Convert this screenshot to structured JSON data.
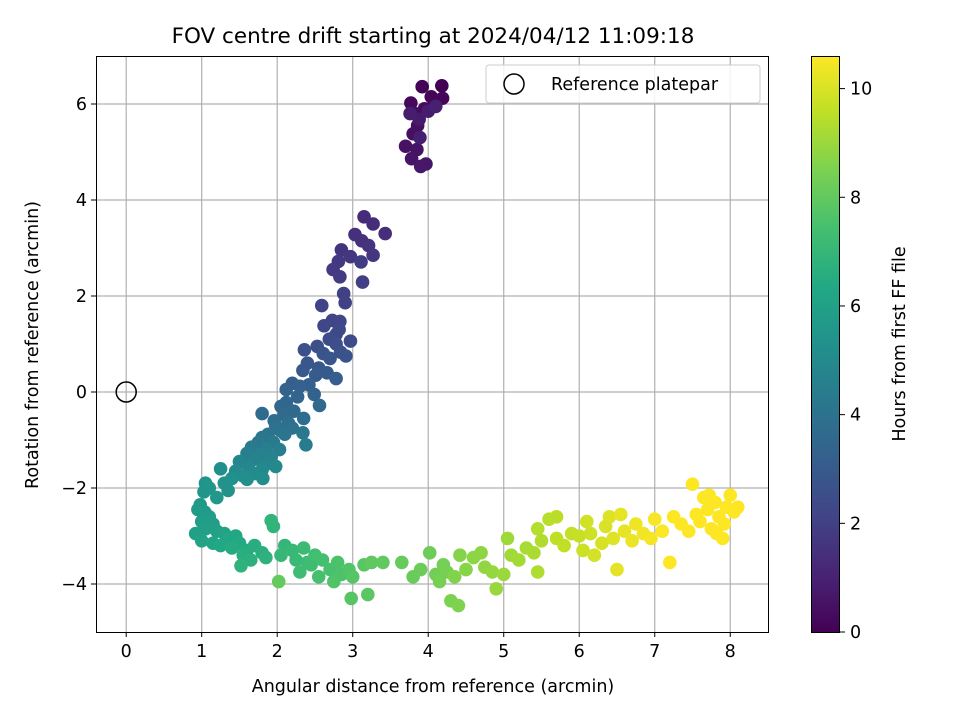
{
  "chart_data": {
    "type": "scatter",
    "title": "FOV centre drift starting at 2024/04/12 11:09:18",
    "xlabel": "Angular distance from reference (arcmin)",
    "ylabel": "Rotation from reference (arcmin)",
    "xlim": [
      -0.4,
      8.5
    ],
    "ylim": [
      -5.0,
      7.0
    ],
    "xticks": [
      0,
      1,
      2,
      3,
      4,
      5,
      6,
      7,
      8
    ],
    "yticks": [
      -4,
      -2,
      0,
      2,
      4,
      6
    ],
    "grid": true,
    "legend": {
      "position": "top-right",
      "entries": [
        {
          "label": "Reference platepar",
          "marker": "open-circle"
        }
      ]
    },
    "reference_point": {
      "x": 0,
      "y": 0
    },
    "colorbar": {
      "label": "Hours from first FF file",
      "range": [
        0,
        10.6
      ],
      "ticks": [
        0,
        2,
        4,
        6,
        8,
        10
      ],
      "colormap": "viridis"
    },
    "points": [
      [
        4.18,
        6.38,
        0.0
      ],
      [
        3.92,
        6.36,
        0.05
      ],
      [
        4.04,
        6.15,
        0.1
      ],
      [
        4.19,
        6.12,
        0.15
      ],
      [
        3.77,
        6.02,
        0.2
      ],
      [
        4.08,
        5.98,
        0.25
      ],
      [
        3.95,
        5.9,
        0.3
      ],
      [
        3.82,
        5.8,
        0.35
      ],
      [
        3.86,
        5.55,
        0.4
      ],
      [
        3.8,
        5.38,
        0.45
      ],
      [
        3.7,
        5.12,
        0.5
      ],
      [
        3.85,
        5.05,
        0.55
      ],
      [
        3.78,
        4.86,
        0.6
      ],
      [
        3.97,
        4.75,
        0.65
      ],
      [
        3.9,
        4.7,
        0.7
      ],
      [
        3.88,
        5.68,
        0.75
      ],
      [
        4.0,
        5.85,
        0.8
      ],
      [
        3.76,
        5.8,
        0.85
      ],
      [
        3.89,
        5.3,
        0.9
      ],
      [
        4.1,
        5.95,
        0.95
      ],
      [
        3.15,
        3.65,
        1.3
      ],
      [
        3.27,
        3.5,
        1.35
      ],
      [
        3.43,
        3.3,
        1.4
      ],
      [
        3.03,
        3.28,
        1.45
      ],
      [
        3.12,
        3.15,
        1.5
      ],
      [
        3.21,
        3.05,
        1.55
      ],
      [
        2.85,
        2.96,
        1.6
      ],
      [
        3.27,
        2.85,
        1.65
      ],
      [
        2.97,
        2.82,
        1.7
      ],
      [
        2.81,
        2.72,
        1.75
      ],
      [
        2.74,
        2.55,
        1.8
      ],
      [
        2.83,
        2.4,
        1.85
      ],
      [
        3.11,
        2.71,
        1.9
      ],
      [
        3.13,
        2.29,
        1.95
      ],
      [
        2.88,
        2.05,
        2.0
      ],
      [
        2.9,
        1.86,
        2.05
      ],
      [
        2.59,
        1.8,
        2.1
      ],
      [
        2.73,
        1.49,
        2.15
      ],
      [
        2.83,
        1.47,
        2.2
      ],
      [
        2.62,
        1.38,
        2.25
      ],
      [
        2.82,
        1.3,
        2.3
      ],
      [
        2.78,
        1.2,
        2.35
      ],
      [
        2.69,
        1.1,
        2.4
      ],
      [
        2.97,
        1.06,
        2.45
      ],
      [
        2.78,
        1.0,
        2.5
      ],
      [
        2.53,
        0.95,
        2.55
      ],
      [
        2.36,
        0.88,
        2.6
      ],
      [
        2.84,
        0.83,
        2.65
      ],
      [
        2.61,
        0.8,
        2.7
      ],
      [
        2.91,
        0.75,
        2.75
      ],
      [
        2.7,
        0.7,
        2.8
      ],
      [
        2.4,
        0.6,
        2.85
      ],
      [
        2.55,
        0.5,
        2.9
      ],
      [
        2.34,
        0.45,
        2.95
      ],
      [
        2.66,
        0.4,
        3.0
      ],
      [
        2.51,
        0.35,
        3.05
      ],
      [
        2.78,
        0.28,
        3.1
      ],
      [
        2.2,
        0.18,
        3.15
      ],
      [
        2.42,
        0.15,
        3.2
      ],
      [
        2.3,
        0.12,
        3.25
      ],
      [
        2.12,
        0.05,
        3.3
      ],
      [
        2.49,
        -0.05,
        3.35
      ],
      [
        2.27,
        -0.1,
        3.4
      ],
      [
        2.12,
        -0.22,
        3.45
      ],
      [
        2.05,
        -0.3,
        3.5
      ],
      [
        2.56,
        -0.28,
        3.55
      ],
      [
        2.22,
        -0.4,
        3.6
      ],
      [
        1.8,
        -0.45,
        3.65
      ],
      [
        2.09,
        -0.48,
        3.7
      ],
      [
        2.35,
        -0.55,
        3.75
      ],
      [
        1.96,
        -0.6,
        3.8
      ],
      [
        2.15,
        -0.65,
        3.85
      ],
      [
        1.98,
        -0.7,
        3.9
      ],
      [
        2.2,
        -0.75,
        3.95
      ],
      [
        2.04,
        -0.8,
        4.0
      ],
      [
        1.88,
        -0.88,
        4.05
      ],
      [
        2.1,
        -0.88,
        4.1
      ],
      [
        1.8,
        -0.95,
        4.15
      ],
      [
        2.34,
        -0.85,
        4.2
      ],
      [
        1.75,
        -1.05,
        4.25
      ],
      [
        1.95,
        -1.05,
        4.3
      ],
      [
        2.38,
        -1.1,
        4.35
      ],
      [
        1.66,
        -1.15,
        4.4
      ],
      [
        1.85,
        -1.18,
        4.45
      ],
      [
        2.03,
        -1.2,
        4.5
      ],
      [
        1.6,
        -1.28,
        4.55
      ],
      [
        1.78,
        -1.3,
        4.6
      ],
      [
        1.92,
        -1.35,
        4.65
      ],
      [
        1.7,
        -1.4,
        4.7
      ],
      [
        1.5,
        -1.45,
        4.75
      ],
      [
        1.86,
        -1.5,
        4.8
      ],
      [
        1.62,
        -1.55,
        4.85
      ],
      [
        1.98,
        -1.55,
        4.9
      ],
      [
        1.8,
        -1.62,
        4.95
      ],
      [
        1.45,
        -1.65,
        5.0
      ],
      [
        1.7,
        -1.7,
        5.05
      ],
      [
        1.55,
        -1.75,
        5.1
      ],
      [
        1.81,
        -1.8,
        5.15
      ],
      [
        1.6,
        -1.82,
        5.2
      ],
      [
        1.25,
        -1.6,
        5.25
      ],
      [
        1.4,
        -1.8,
        5.3
      ],
      [
        1.3,
        -1.9,
        5.35
      ],
      [
        1.35,
        -2.05,
        5.4
      ],
      [
        1.05,
        -1.9,
        5.45
      ],
      [
        1.03,
        -2.08,
        5.5
      ],
      [
        1.1,
        -2.0,
        5.55
      ],
      [
        1.2,
        -2.2,
        5.6
      ],
      [
        0.98,
        -2.35,
        5.65
      ],
      [
        1.04,
        -2.5,
        5.7
      ],
      [
        0.95,
        -2.45,
        5.75
      ],
      [
        1.1,
        -2.6,
        5.8
      ],
      [
        1.0,
        -2.7,
        5.85
      ],
      [
        1.15,
        -2.75,
        5.9
      ],
      [
        1.05,
        -2.85,
        5.95
      ],
      [
        0.92,
        -2.95,
        6.0
      ],
      [
        1.2,
        -2.9,
        6.05
      ],
      [
        1.3,
        -2.95,
        6.1
      ],
      [
        1.0,
        -3.1,
        6.15
      ],
      [
        1.15,
        -3.15,
        6.2
      ],
      [
        1.35,
        -3.05,
        6.25
      ],
      [
        1.45,
        -3.0,
        6.3
      ],
      [
        1.25,
        -3.2,
        6.35
      ],
      [
        1.5,
        -3.15,
        6.4
      ],
      [
        1.4,
        -3.25,
        6.45
      ],
      [
        1.6,
        -3.3,
        6.5
      ],
      [
        1.7,
        -3.2,
        6.55
      ],
      [
        1.55,
        -3.4,
        6.6
      ],
      [
        1.8,
        -3.35,
        6.65
      ],
      [
        1.65,
        -3.5,
        6.7
      ],
      [
        1.85,
        -3.45,
        6.75
      ],
      [
        1.52,
        -3.62,
        6.8
      ],
      [
        1.95,
        -2.8,
        6.85
      ],
      [
        1.92,
        -2.68,
        6.9
      ],
      [
        2.1,
        -3.2,
        6.95
      ],
      [
        2.05,
        -3.4,
        7.0
      ],
      [
        2.2,
        -3.3,
        7.05
      ],
      [
        2.25,
        -3.5,
        7.1
      ],
      [
        2.35,
        -3.25,
        7.15
      ],
      [
        2.4,
        -3.55,
        7.2
      ],
      [
        2.3,
        -3.75,
        7.25
      ],
      [
        2.45,
        -3.6,
        7.3
      ],
      [
        2.5,
        -3.4,
        7.35
      ],
      [
        2.6,
        -3.5,
        7.4
      ],
      [
        2.55,
        -3.85,
        7.45
      ],
      [
        2.7,
        -3.7,
        7.5
      ],
      [
        2.8,
        -3.55,
        7.55
      ],
      [
        2.85,
        -3.8,
        7.6
      ],
      [
        2.75,
        -3.95,
        7.65
      ],
      [
        2.95,
        -3.7,
        7.7
      ],
      [
        3.0,
        -3.85,
        7.75
      ],
      [
        2.98,
        -4.3,
        7.8
      ],
      [
        3.15,
        -3.6,
        7.85
      ],
      [
        3.2,
        -4.22,
        7.9
      ],
      [
        3.25,
        -3.55,
        7.95
      ],
      [
        3.4,
        -3.55,
        8.0
      ],
      [
        2.02,
        -3.95,
        8.05
      ],
      [
        3.65,
        -3.55,
        8.1
      ],
      [
        3.8,
        -3.85,
        8.15
      ],
      [
        3.9,
        -3.7,
        8.2
      ],
      [
        4.02,
        -3.35,
        8.25
      ],
      [
        4.1,
        -3.8,
        8.3
      ],
      [
        4.2,
        -3.6,
        8.35
      ],
      [
        4.15,
        -3.95,
        8.4
      ],
      [
        4.25,
        -3.75,
        8.45
      ],
      [
        4.3,
        -4.35,
        8.5
      ],
      [
        4.4,
        -4.45,
        8.55
      ],
      [
        4.35,
        -3.85,
        8.6
      ],
      [
        4.42,
        -3.4,
        8.65
      ],
      [
        4.5,
        -3.7,
        8.7
      ],
      [
        4.6,
        -3.45,
        8.75
      ],
      [
        4.7,
        -3.35,
        8.8
      ],
      [
        4.75,
        -3.65,
        8.85
      ],
      [
        4.85,
        -3.75,
        8.9
      ],
      [
        4.9,
        -4.1,
        8.95
      ],
      [
        5.0,
        -3.8,
        9.0
      ],
      [
        5.05,
        -3.05,
        9.05
      ],
      [
        5.1,
        -3.4,
        9.1
      ],
      [
        5.2,
        -3.5,
        9.15
      ],
      [
        5.3,
        -3.25,
        9.2
      ],
      [
        5.4,
        -3.35,
        9.25
      ],
      [
        5.45,
        -3.75,
        9.3
      ],
      [
        5.5,
        -3.1,
        9.35
      ],
      [
        5.45,
        -2.85,
        9.4
      ],
      [
        5.6,
        -2.65,
        9.45
      ],
      [
        5.7,
        -2.6,
        9.5
      ],
      [
        5.7,
        -3.05,
        9.55
      ],
      [
        5.8,
        -3.2,
        9.6
      ],
      [
        5.9,
        -2.95,
        9.65
      ],
      [
        6.0,
        -3.0,
        9.7
      ],
      [
        6.05,
        -3.3,
        9.75
      ],
      [
        6.15,
        -2.95,
        9.8
      ],
      [
        6.1,
        -2.7,
        9.85
      ],
      [
        6.2,
        -3.4,
        9.9
      ],
      [
        6.3,
        -3.15,
        9.95
      ],
      [
        6.35,
        -2.8,
        10.0
      ],
      [
        6.4,
        -2.6,
        10.05
      ],
      [
        6.45,
        -3.05,
        10.1
      ],
      [
        6.5,
        -3.7,
        10.15
      ],
      [
        6.55,
        -2.55,
        10.2
      ],
      [
        6.6,
        -2.9,
        10.25
      ],
      [
        6.7,
        -3.1,
        10.3
      ],
      [
        6.75,
        -2.75,
        10.35
      ],
      [
        6.85,
        -2.95,
        10.4
      ],
      [
        6.95,
        -3.05,
        10.45
      ],
      [
        7.0,
        -2.65,
        10.5
      ],
      [
        7.1,
        -2.9,
        10.55
      ],
      [
        7.2,
        -3.55,
        10.6
      ],
      [
        7.25,
        -2.6,
        10.6
      ],
      [
        7.35,
        -2.75,
        10.6
      ],
      [
        7.45,
        -2.9,
        10.6
      ],
      [
        7.5,
        -1.92,
        10.6
      ],
      [
        7.55,
        -2.55,
        10.6
      ],
      [
        7.6,
        -2.7,
        10.6
      ],
      [
        7.65,
        -2.2,
        10.6
      ],
      [
        7.7,
        -2.45,
        10.6
      ],
      [
        7.75,
        -2.85,
        10.6
      ],
      [
        7.8,
        -2.3,
        10.6
      ],
      [
        7.85,
        -2.6,
        10.6
      ],
      [
        7.9,
        -3.05,
        10.6
      ],
      [
        7.95,
        -2.4,
        10.6
      ],
      [
        8.0,
        -2.15,
        10.6
      ],
      [
        8.05,
        -2.5,
        10.6
      ],
      [
        8.1,
        -2.4,
        10.6
      ],
      [
        7.82,
        -2.95,
        10.6
      ],
      [
        7.92,
        -2.75,
        10.6
      ],
      [
        7.72,
        -2.15,
        10.6
      ]
    ]
  }
}
